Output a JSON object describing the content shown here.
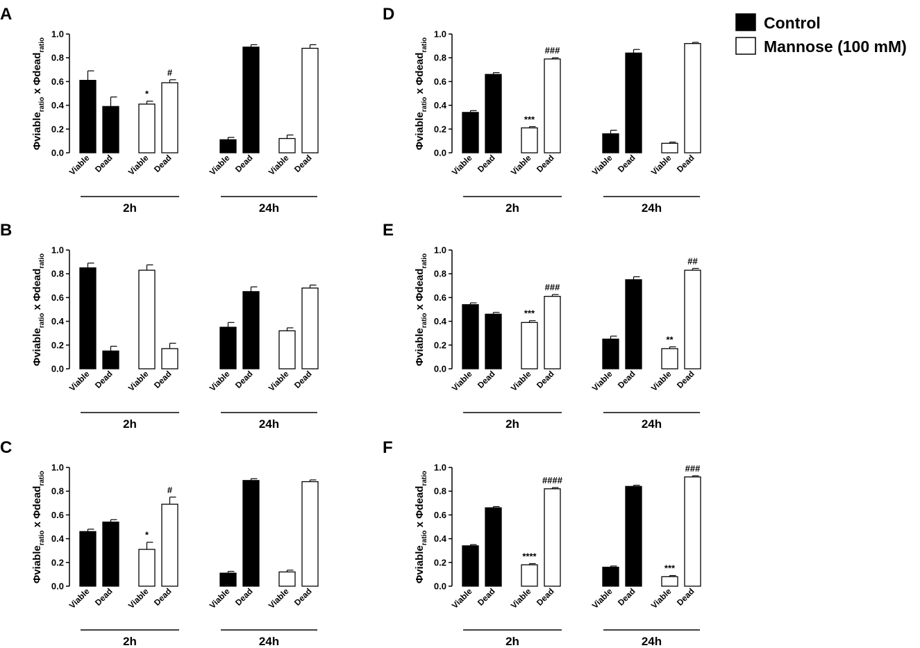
{
  "legend": {
    "entries": [
      {
        "name": "Control",
        "fill": "#000000"
      },
      {
        "name": "Mannose (100 mM)",
        "fill": "#ffffff"
      }
    ]
  },
  "chart_data": [
    {
      "panel": "A",
      "type": "bar",
      "ylabel": {
        "parts": [
          "Φviable",
          "ratio",
          " x Φdead",
          "ratio"
        ]
      },
      "ylim": [
        0,
        1.0
      ],
      "yticks": [
        "0.0",
        "0.2",
        "0.4",
        "0.6",
        "0.8",
        "1.0"
      ],
      "groups": [
        "2h",
        "24h"
      ],
      "bars": [
        {
          "group": "2h",
          "series": "Control",
          "category": "Viable",
          "value": 0.61,
          "error": 0.08,
          "annotation": ""
        },
        {
          "group": "2h",
          "series": "Control",
          "category": "Dead",
          "value": 0.39,
          "error": 0.08,
          "annotation": ""
        },
        {
          "group": "2h",
          "series": "Mannose (100 mM)",
          "category": "Viable",
          "value": 0.41,
          "error": 0.025,
          "annotation": "*"
        },
        {
          "group": "2h",
          "series": "Mannose (100 mM)",
          "category": "Dead",
          "value": 0.59,
          "error": 0.025,
          "annotation": "#"
        },
        {
          "group": "24h",
          "series": "Control",
          "category": "Viable",
          "value": 0.11,
          "error": 0.02,
          "annotation": ""
        },
        {
          "group": "24h",
          "series": "Control",
          "category": "Dead",
          "value": 0.89,
          "error": 0.02,
          "annotation": ""
        },
        {
          "group": "24h",
          "series": "Mannose (100 mM)",
          "category": "Viable",
          "value": 0.12,
          "error": 0.03,
          "annotation": ""
        },
        {
          "group": "24h",
          "series": "Mannose (100 mM)",
          "category": "Dead",
          "value": 0.88,
          "error": 0.03,
          "annotation": ""
        }
      ]
    },
    {
      "panel": "B",
      "type": "bar",
      "ylabel": {
        "parts": [
          "Φviable",
          "ratio",
          " x Φdead",
          "ratio"
        ]
      },
      "ylim": [
        0,
        1.0
      ],
      "yticks": [
        "0.0",
        "0.2",
        "0.4",
        "0.6",
        "0.8",
        "1.0"
      ],
      "groups": [
        "2h",
        "24h"
      ],
      "bars": [
        {
          "group": "2h",
          "series": "Control",
          "category": "Viable",
          "value": 0.85,
          "error": 0.04,
          "annotation": ""
        },
        {
          "group": "2h",
          "series": "Control",
          "category": "Dead",
          "value": 0.15,
          "error": 0.04,
          "annotation": ""
        },
        {
          "group": "2h",
          "series": "Mannose (100 mM)",
          "category": "Viable",
          "value": 0.83,
          "error": 0.045,
          "annotation": ""
        },
        {
          "group": "2h",
          "series": "Mannose (100 mM)",
          "category": "Dead",
          "value": 0.17,
          "error": 0.045,
          "annotation": ""
        },
        {
          "group": "24h",
          "series": "Control",
          "category": "Viable",
          "value": 0.35,
          "error": 0.04,
          "annotation": ""
        },
        {
          "group": "24h",
          "series": "Control",
          "category": "Dead",
          "value": 0.65,
          "error": 0.04,
          "annotation": ""
        },
        {
          "group": "24h",
          "series": "Mannose (100 mM)",
          "category": "Viable",
          "value": 0.32,
          "error": 0.025,
          "annotation": ""
        },
        {
          "group": "24h",
          "series": "Mannose (100 mM)",
          "category": "Dead",
          "value": 0.68,
          "error": 0.025,
          "annotation": ""
        }
      ]
    },
    {
      "panel": "C",
      "type": "bar",
      "ylabel": {
        "parts": [
          "Φviable",
          "ratio",
          " x Φdead",
          "ratio"
        ]
      },
      "ylim": [
        0,
        1.0
      ],
      "yticks": [
        "0.0",
        "0.2",
        "0.4",
        "0.6",
        "0.8",
        "1.0"
      ],
      "groups": [
        "2h",
        "24h"
      ],
      "bars": [
        {
          "group": "2h",
          "series": "Control",
          "category": "Viable",
          "value": 0.46,
          "error": 0.02,
          "annotation": ""
        },
        {
          "group": "2h",
          "series": "Control",
          "category": "Dead",
          "value": 0.54,
          "error": 0.02,
          "annotation": ""
        },
        {
          "group": "2h",
          "series": "Mannose (100 mM)",
          "category": "Viable",
          "value": 0.31,
          "error": 0.06,
          "annotation": "*"
        },
        {
          "group": "2h",
          "series": "Mannose (100 mM)",
          "category": "Dead",
          "value": 0.69,
          "error": 0.06,
          "annotation": "#"
        },
        {
          "group": "24h",
          "series": "Control",
          "category": "Viable",
          "value": 0.11,
          "error": 0.015,
          "annotation": ""
        },
        {
          "group": "24h",
          "series": "Control",
          "category": "Dead",
          "value": 0.89,
          "error": 0.015,
          "annotation": ""
        },
        {
          "group": "24h",
          "series": "Mannose (100 mM)",
          "category": "Viable",
          "value": 0.12,
          "error": 0.015,
          "annotation": ""
        },
        {
          "group": "24h",
          "series": "Mannose (100 mM)",
          "category": "Dead",
          "value": 0.88,
          "error": 0.015,
          "annotation": ""
        }
      ]
    },
    {
      "panel": "D",
      "type": "bar",
      "ylabel": {
        "parts": [
          "Φviable",
          "ratio",
          " x Φdead",
          "ratio"
        ]
      },
      "ylim": [
        0,
        1.0
      ],
      "yticks": [
        "0.0",
        "0.2",
        "0.4",
        "0.6",
        "0.8",
        "1.0"
      ],
      "groups": [
        "2h",
        "24h"
      ],
      "bars": [
        {
          "group": "2h",
          "series": "Control",
          "category": "Viable",
          "value": 0.34,
          "error": 0.015,
          "annotation": ""
        },
        {
          "group": "2h",
          "series": "Control",
          "category": "Dead",
          "value": 0.66,
          "error": 0.015,
          "annotation": ""
        },
        {
          "group": "2h",
          "series": "Mannose (100 mM)",
          "category": "Viable",
          "value": 0.21,
          "error": 0.01,
          "annotation": "***"
        },
        {
          "group": "2h",
          "series": "Mannose (100 mM)",
          "category": "Dead",
          "value": 0.79,
          "error": 0.01,
          "annotation": "###"
        },
        {
          "group": "24h",
          "series": "Control",
          "category": "Viable",
          "value": 0.16,
          "error": 0.03,
          "annotation": ""
        },
        {
          "group": "24h",
          "series": "Control",
          "category": "Dead",
          "value": 0.84,
          "error": 0.03,
          "annotation": ""
        },
        {
          "group": "24h",
          "series": "Mannose (100 mM)",
          "category": "Viable",
          "value": 0.08,
          "error": 0.01,
          "annotation": ""
        },
        {
          "group": "24h",
          "series": "Mannose (100 mM)",
          "category": "Dead",
          "value": 0.92,
          "error": 0.01,
          "annotation": ""
        }
      ]
    },
    {
      "panel": "E",
      "type": "bar",
      "ylabel": {
        "parts": [
          "Φviable",
          "ratio",
          " x Φdead",
          "ratio"
        ]
      },
      "ylim": [
        0,
        1.0
      ],
      "yticks": [
        "0.0",
        "0.2",
        "0.4",
        "0.6",
        "0.8",
        "1.0"
      ],
      "groups": [
        "2h",
        "24h"
      ],
      "bars": [
        {
          "group": "2h",
          "series": "Control",
          "category": "Viable",
          "value": 0.54,
          "error": 0.015,
          "annotation": ""
        },
        {
          "group": "2h",
          "series": "Control",
          "category": "Dead",
          "value": 0.46,
          "error": 0.015,
          "annotation": ""
        },
        {
          "group": "2h",
          "series": "Mannose (100 mM)",
          "category": "Viable",
          "value": 0.39,
          "error": 0.015,
          "annotation": "***"
        },
        {
          "group": "2h",
          "series": "Mannose (100 mM)",
          "category": "Dead",
          "value": 0.61,
          "error": 0.015,
          "annotation": "###"
        },
        {
          "group": "24h",
          "series": "Control",
          "category": "Viable",
          "value": 0.25,
          "error": 0.025,
          "annotation": ""
        },
        {
          "group": "24h",
          "series": "Control",
          "category": "Dead",
          "value": 0.75,
          "error": 0.025,
          "annotation": ""
        },
        {
          "group": "24h",
          "series": "Mannose (100 mM)",
          "category": "Viable",
          "value": 0.17,
          "error": 0.015,
          "annotation": "**"
        },
        {
          "group": "24h",
          "series": "Mannose (100 mM)",
          "category": "Dead",
          "value": 0.83,
          "error": 0.015,
          "annotation": "##"
        }
      ]
    },
    {
      "panel": "F",
      "type": "bar",
      "ylabel": {
        "parts": [
          "Φviable",
          "ratio",
          " x Φdead",
          "ratio"
        ]
      },
      "ylim": [
        0,
        1.0
      ],
      "yticks": [
        "0.0",
        "0.2",
        "0.4",
        "0.6",
        "0.8",
        "1.0"
      ],
      "groups": [
        "2h",
        "24h"
      ],
      "bars": [
        {
          "group": "2h",
          "series": "Control",
          "category": "Viable",
          "value": 0.34,
          "error": 0.01,
          "annotation": ""
        },
        {
          "group": "2h",
          "series": "Control",
          "category": "Dead",
          "value": 0.66,
          "error": 0.01,
          "annotation": ""
        },
        {
          "group": "2h",
          "series": "Mannose (100 mM)",
          "category": "Viable",
          "value": 0.18,
          "error": 0.01,
          "annotation": "****"
        },
        {
          "group": "2h",
          "series": "Mannose (100 mM)",
          "category": "Dead",
          "value": 0.82,
          "error": 0.01,
          "annotation": "####"
        },
        {
          "group": "24h",
          "series": "Control",
          "category": "Viable",
          "value": 0.16,
          "error": 0.01,
          "annotation": ""
        },
        {
          "group": "24h",
          "series": "Control",
          "category": "Dead",
          "value": 0.84,
          "error": 0.01,
          "annotation": ""
        },
        {
          "group": "24h",
          "series": "Mannose (100 mM)",
          "category": "Viable",
          "value": 0.08,
          "error": 0.01,
          "annotation": "***"
        },
        {
          "group": "24h",
          "series": "Mannose (100 mM)",
          "category": "Dead",
          "value": 0.92,
          "error": 0.01,
          "annotation": "###"
        }
      ]
    }
  ]
}
